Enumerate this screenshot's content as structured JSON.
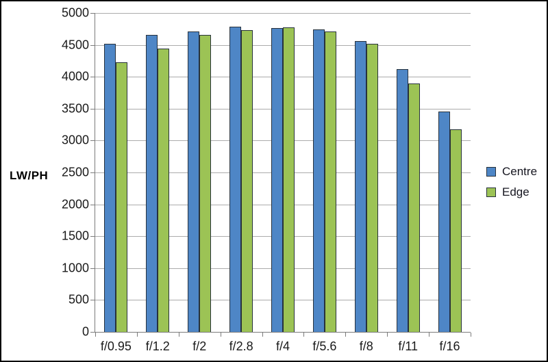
{
  "chart_data": {
    "type": "bar",
    "title": "",
    "ylabel": "LW/PH",
    "xlabel": "",
    "categories": [
      "f/0.95",
      "f/1.2",
      "f/2",
      "f/2.8",
      "f/4",
      "f/5.6",
      "f/8",
      "f/11",
      "f/16"
    ],
    "series": [
      {
        "name": "Centre",
        "color": "#4e86c6",
        "values": [
          4520,
          4660,
          4710,
          4790,
          4760,
          4740,
          4560,
          4120,
          3450
        ]
      },
      {
        "name": "Edge",
        "color": "#9cc355",
        "values": [
          4230,
          4440,
          4660,
          4730,
          4770,
          4710,
          4520,
          3900,
          3180
        ]
      }
    ],
    "ylim": [
      0,
      5000
    ],
    "ytick_step": 500,
    "ytick_labels": [
      "0",
      "500",
      "1000",
      "1500",
      "2000",
      "2500",
      "3000",
      "3500",
      "4000",
      "4500",
      "5000"
    ],
    "grid": true,
    "legend_position": "right"
  },
  "colors": {
    "frame": "#000000",
    "background": "#ffffff",
    "gridline": "#ababab",
    "axis": "#7a7a7a",
    "bar_border": "#27313c",
    "text": "#1a1a1a"
  }
}
